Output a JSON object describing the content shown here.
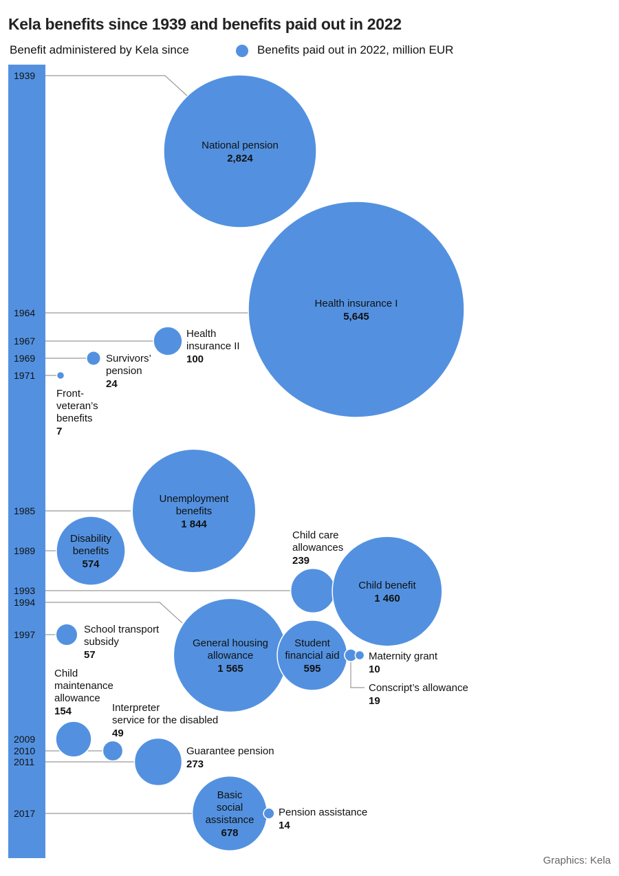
{
  "title": "Kela benefits since 1939 and benefits paid out in 2022",
  "legend": {
    "years_label": "Benefit administered by Kela since",
    "circle_label": "Benefits paid out in 2022, million EUR"
  },
  "credit": "Graphics: Kela",
  "colors": {
    "circle": "#5391e0",
    "bar": "#5391e0",
    "line": "#999999"
  },
  "chart_data": {
    "type": "bubble-timeline",
    "title": "Kela benefits since 1939 and benefits paid out in 2022",
    "years": [
      "1939",
      "1964",
      "1967",
      "1969",
      "1971",
      "1985",
      "1989",
      "1993",
      "1994",
      "1997",
      "2009",
      "2010",
      "2011",
      "2017"
    ],
    "benefits": [
      {
        "year": "1939",
        "name": [
          "National pension"
        ],
        "value_label": "2,824",
        "value": 2824
      },
      {
        "year": "1964",
        "name": [
          "Health insurance I"
        ],
        "value_label": "5,645",
        "value": 5645
      },
      {
        "year": "1967",
        "name": [
          "Health",
          "insurance II"
        ],
        "value_label": "100",
        "value": 100
      },
      {
        "year": "1969",
        "name": [
          "Survivors’",
          "pension"
        ],
        "value_label": "24",
        "value": 24
      },
      {
        "year": "1971",
        "name": [
          "Front-",
          "veteran’s",
          "benefits"
        ],
        "value_label": "7",
        "value": 7
      },
      {
        "year": "1985",
        "name": [
          "Unemployment",
          "benefits"
        ],
        "value_label": "1 844",
        "value": 1844
      },
      {
        "year": "1989",
        "name": [
          "Disability",
          "benefits"
        ],
        "value_label": "574",
        "value": 574
      },
      {
        "year": "1993",
        "name": [
          "Child care",
          "allowances"
        ],
        "value_label": "239",
        "value": 239
      },
      {
        "year": "1993",
        "name": [
          "Child benefit"
        ],
        "value_label": "1 460",
        "value": 1460
      },
      {
        "year": "1994",
        "name": [
          "General housing",
          "allowance"
        ],
        "value_label": "1 565",
        "value": 1565
      },
      {
        "year": "1994",
        "name": [
          "Student",
          "financial aid"
        ],
        "value_label": "595",
        "value": 595
      },
      {
        "year": "1994",
        "name": [
          "Conscript’s allowance"
        ],
        "value_label": "19",
        "value": 19
      },
      {
        "year": "1994",
        "name": [
          "Maternity grant"
        ],
        "value_label": "10",
        "value": 10
      },
      {
        "year": "1997",
        "name": [
          "School transport",
          "subsidy"
        ],
        "value_label": "57",
        "value": 57
      },
      {
        "year": "2009",
        "name": [
          "Child",
          "maintenance",
          "allowance"
        ],
        "value_label": "154",
        "value": 154
      },
      {
        "year": "2010",
        "name": [
          "Interpreter",
          "service for the disabled"
        ],
        "value_label": "49",
        "value": 49
      },
      {
        "year": "2011",
        "name": [
          "Guarantee pension"
        ],
        "value_label": "273",
        "value": 273
      },
      {
        "year": "2017",
        "name": [
          "Basic",
          "social",
          "assistance"
        ],
        "value_label": "678",
        "value": 678
      },
      {
        "year": "2017",
        "name": [
          "Pension assistance"
        ],
        "value_label": "14",
        "value": 14
      }
    ]
  }
}
